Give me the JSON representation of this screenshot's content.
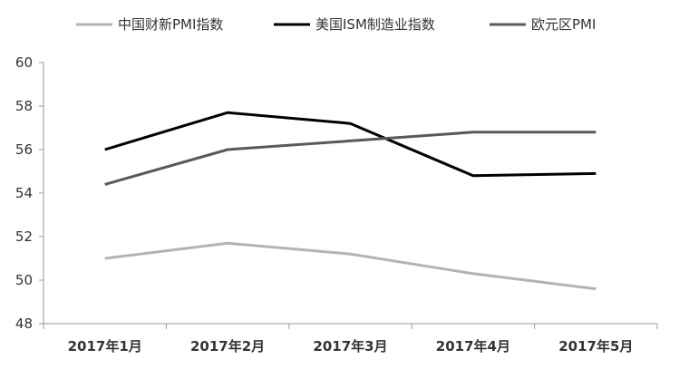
{
  "chart_data": {
    "type": "line",
    "title": "",
    "xlabel": "",
    "ylabel": "",
    "categories": [
      "2017年1月",
      "2017年2月",
      "2017年3月",
      "2017年4月",
      "2017年5月"
    ],
    "ylim": [
      48,
      60
    ],
    "yticks": [
      48,
      50,
      52,
      54,
      56,
      58,
      60
    ],
    "grid": false,
    "legend_position": "top",
    "series": [
      {
        "name": "中国财新PMI指数",
        "color": "#b3b3b3",
        "values": [
          51.0,
          51.7,
          51.2,
          50.3,
          49.6
        ]
      },
      {
        "name": "美国ISM制造业指数",
        "color": "#000000",
        "values": [
          56.0,
          57.7,
          57.2,
          54.8,
          54.9
        ]
      },
      {
        "name": "欧元区PMI",
        "color": "#595959",
        "values": [
          54.4,
          56.0,
          56.4,
          56.8,
          56.8
        ]
      }
    ]
  }
}
